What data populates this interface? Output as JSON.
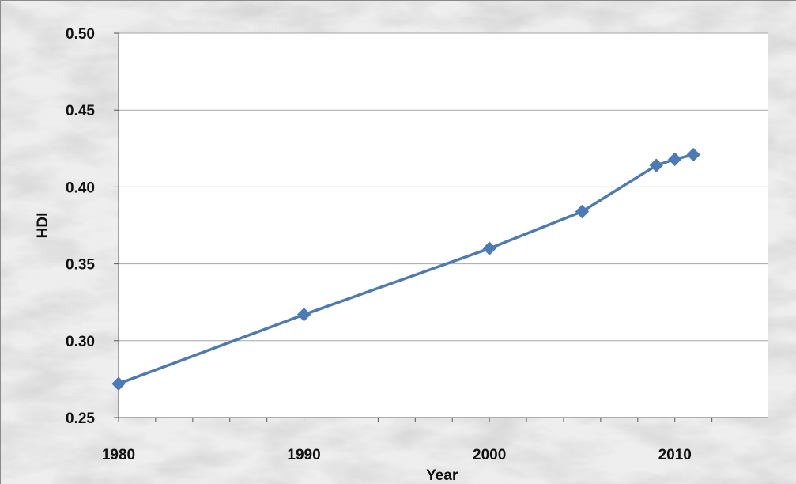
{
  "chart_data": {
    "type": "line",
    "title": "",
    "xlabel": "Year",
    "ylabel": "HDI",
    "xlim": [
      1980,
      2015
    ],
    "ylim": [
      0.25,
      0.5
    ],
    "x_ticks": [
      1980,
      1990,
      2000,
      2010
    ],
    "y_ticks": [
      0.25,
      0.3,
      0.35,
      0.4,
      0.45,
      0.5
    ],
    "y_tick_labels": [
      "0.25",
      "0.30",
      "0.35",
      "0.40",
      "0.45",
      "0.50"
    ],
    "x_tick_labels": [
      "1980",
      "1990",
      "2000",
      "2010"
    ],
    "grid": "horizontal",
    "legend": "none",
    "series": [
      {
        "color": "#4a7ab8",
        "marker": "diamond",
        "x": [
          1980,
          1990,
          2000,
          2005,
          2009,
          2010,
          2011
        ],
        "y": [
          0.272,
          0.317,
          0.36,
          0.384,
          0.414,
          0.418,
          0.421
        ]
      }
    ]
  },
  "colors": {
    "plot_background": "#ffffff",
    "gridline": "#a6a6a6",
    "axis": "#595959",
    "series": "#4a7ab8",
    "frame_background": "marble-gray"
  }
}
